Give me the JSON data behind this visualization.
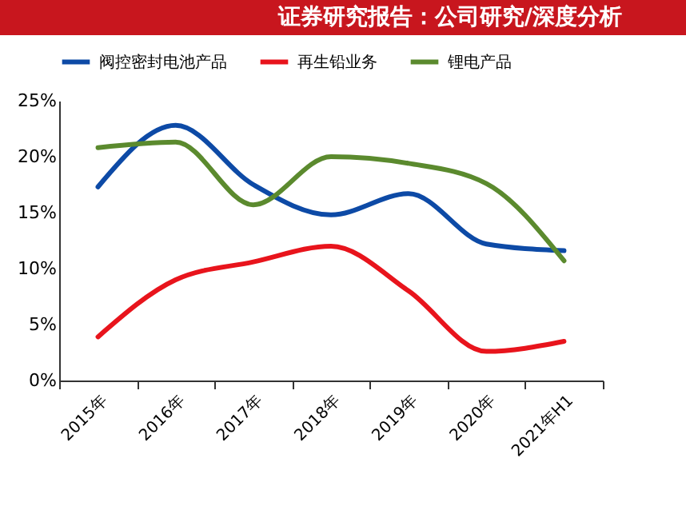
{
  "chart_data": {
    "type": "line",
    "title": "证券研究报告：公司研究/深度分析",
    "categories": [
      "2015年",
      "2016年",
      "2017年",
      "2018年",
      "2019年",
      "2020年",
      "2021年H1"
    ],
    "series": [
      {
        "name": "阀控密封电池产品",
        "color": "#0d4aa6",
        "values": [
          17.3,
          22.8,
          17.5,
          14.8,
          16.7,
          12.2,
          11.6
        ]
      },
      {
        "name": "再生铅业务",
        "color": "#e8141c",
        "values": [
          3.9,
          9.0,
          10.6,
          12.0,
          8.0,
          2.6,
          3.5
        ]
      },
      {
        "name": "锂电产品",
        "color": "#5b8a2e",
        "values": [
          20.8,
          21.3,
          15.7,
          20.0,
          19.4,
          17.6,
          10.7
        ]
      }
    ],
    "ylim": [
      0,
      25
    ],
    "yticks": [
      {
        "value": 0,
        "label": "0%"
      },
      {
        "value": 5,
        "label": "5%"
      },
      {
        "value": 10,
        "label": "10%"
      },
      {
        "value": 15,
        "label": "15%"
      },
      {
        "value": 20,
        "label": "20%"
      },
      {
        "value": 25,
        "label": "25%"
      }
    ],
    "grid": false,
    "legend": "top",
    "marker": "none",
    "line_style": "solid"
  }
}
